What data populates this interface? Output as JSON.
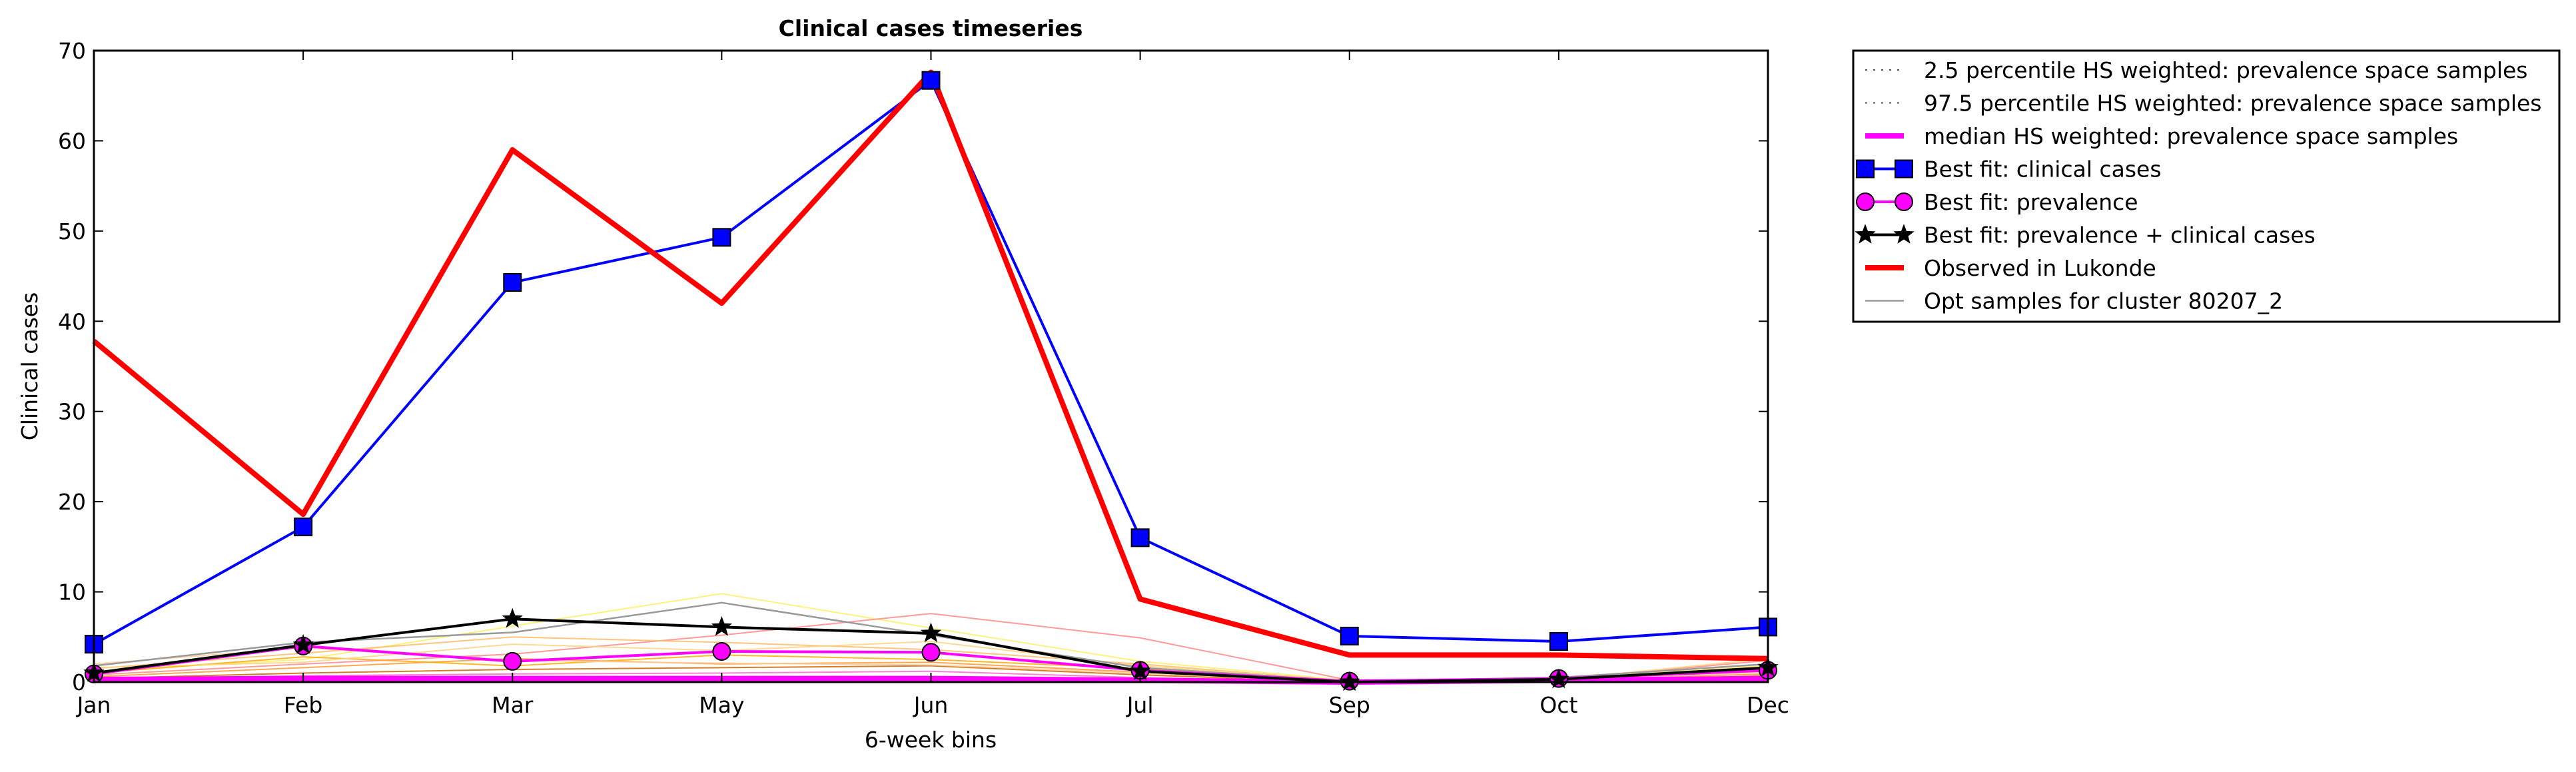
{
  "chart_data": {
    "type": "line",
    "title": "Clinical cases timeseries",
    "xlabel": "6-week bins",
    "ylabel": "Clinical cases",
    "categories": [
      "Jan",
      "Feb",
      "Mar",
      "May",
      "Jun",
      "Jul",
      "Sep",
      "Oct",
      "Dec"
    ],
    "ylim": [
      0,
      70
    ],
    "yticks": [
      0,
      10,
      20,
      30,
      40,
      50,
      60,
      70
    ],
    "grid": false,
    "legend_placement": "outside-top-right",
    "series": [
      {
        "name": "2.5 percentile HS weighted: prevalence space samples",
        "values": [
          0.2,
          0.2,
          0.2,
          0.2,
          0.2,
          0.1,
          0.0,
          0.1,
          0.2
        ],
        "color": "#555555",
        "style": "dotted"
      },
      {
        "name": "97.5 percentile HS weighted: prevalence space samples",
        "values": [
          0.5,
          0.6,
          0.6,
          0.6,
          0.6,
          0.3,
          0.1,
          0.3,
          0.6
        ],
        "color": "#555555",
        "style": "dotted"
      },
      {
        "name": "median HS weighted: prevalence space samples",
        "values": [
          0.3,
          0.4,
          0.4,
          0.4,
          0.4,
          0.2,
          0.0,
          0.2,
          0.4
        ],
        "color": "#ff00ff",
        "style": "solid-thick"
      },
      {
        "name": "Best fit: clinical cases",
        "values": [
          4.2,
          17.2,
          44.3,
          49.3,
          66.7,
          16.0,
          5.1,
          4.5,
          6.1
        ],
        "color": "#0000ff",
        "marker": "square"
      },
      {
        "name": "Best fit: prevalence",
        "values": [
          0.9,
          4.0,
          2.3,
          3.4,
          3.3,
          1.3,
          0.1,
          0.4,
          1.3
        ],
        "color": "#ff00ff",
        "marker": "circle"
      },
      {
        "name": "Best fit: prevalence + clinical cases",
        "values": [
          1.0,
          4.1,
          7.0,
          6.1,
          5.4,
          1.2,
          0.0,
          0.3,
          1.6
        ],
        "color": "#000000",
        "marker": "star"
      },
      {
        "name": "Observed in Lukonde",
        "values": [
          37.8,
          18.6,
          59.0,
          42.0,
          67.6,
          9.2,
          3.0,
          3.0,
          2.6
        ],
        "color": "#ff0000",
        "style": "thick"
      },
      {
        "name": "Opt samples for cluster 80207_2",
        "values": [
          1.8,
          4.4,
          5.5,
          8.8,
          5.2,
          1.6,
          0.1,
          0.5,
          2.0
        ],
        "color": "#999999",
        "style": "thin"
      }
    ],
    "background_samples": [
      {
        "values": [
          1.2,
          2.5,
          6.2,
          9.8,
          6.0,
          2.3,
          0.2,
          0.4,
          1.8
        ],
        "color": "#ffee66"
      },
      {
        "values": [
          0.8,
          2.0,
          3.1,
          5.2,
          7.6,
          4.9,
          0.2,
          0.3,
          2.4
        ],
        "color": "#ff8888"
      },
      {
        "values": [
          1.5,
          3.2,
          5.0,
          4.4,
          3.6,
          2.0,
          0.1,
          0.2,
          1.2
        ],
        "color": "#ffbb66"
      },
      {
        "values": [
          0.6,
          1.6,
          2.6,
          2.0,
          2.2,
          1.1,
          0.1,
          0.2,
          0.9
        ],
        "color": "#ff9933"
      },
      {
        "values": [
          1.0,
          2.8,
          1.8,
          3.0,
          2.5,
          1.5,
          0.0,
          0.1,
          1.5
        ],
        "color": "#ffaa00"
      },
      {
        "values": [
          0.4,
          1.0,
          1.4,
          1.6,
          1.8,
          0.8,
          0.0,
          0.1,
          0.7
        ],
        "color": "#cc6600"
      },
      {
        "values": [
          2.0,
          3.8,
          2.4,
          2.1,
          1.9,
          1.0,
          0.0,
          0.2,
          1.1
        ],
        "color": "#ffcc99"
      },
      {
        "values": [
          0.3,
          0.7,
          0.9,
          1.0,
          1.2,
          0.5,
          0.0,
          0.1,
          0.5
        ],
        "color": "#ff66cc"
      },
      {
        "values": [
          1.6,
          2.2,
          4.2,
          3.5,
          4.5,
          1.8,
          0.1,
          0.3,
          2.6
        ],
        "color": "#ffd27f"
      }
    ]
  }
}
